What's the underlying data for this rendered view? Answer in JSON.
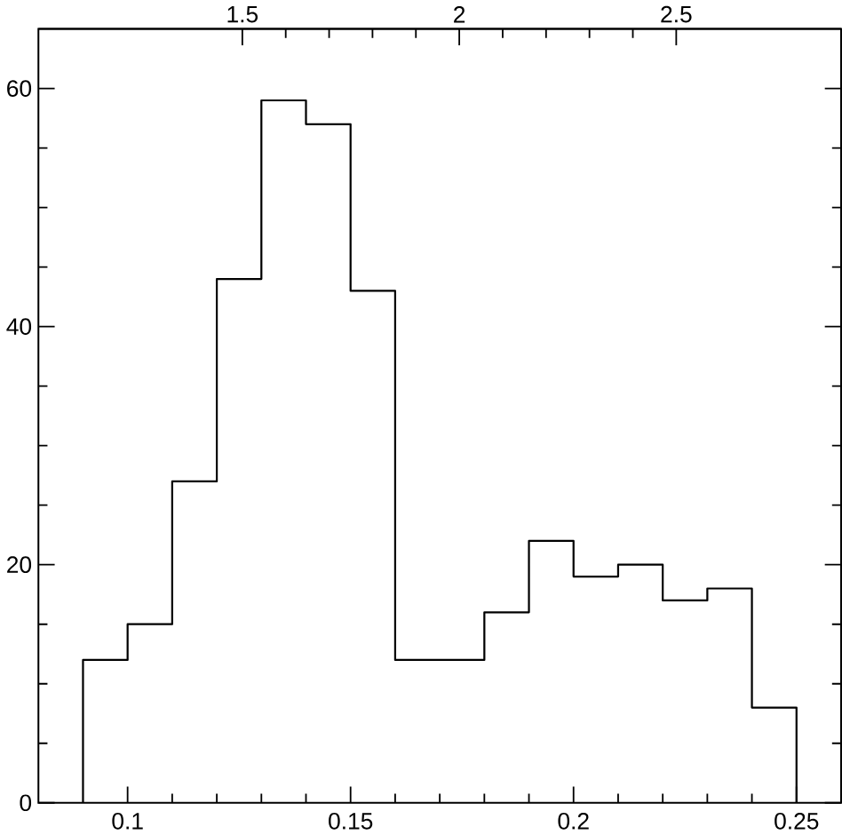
{
  "chart_data": {
    "type": "histogram",
    "bins": [
      0.09,
      0.1,
      0.11,
      0.12,
      0.13,
      0.14,
      0.15,
      0.16,
      0.17,
      0.18,
      0.19,
      0.2,
      0.21,
      0.22,
      0.23,
      0.24,
      0.25
    ],
    "values": [
      12,
      15,
      27,
      44,
      59,
      57,
      43,
      12,
      12,
      16,
      22,
      19,
      20,
      17,
      18,
      8
    ],
    "color": "#000000",
    "xlim": [
      0.08,
      0.26
    ],
    "xticks": [
      0.1,
      0.15,
      0.2,
      0.25
    ],
    "ylim": [
      0,
      65
    ],
    "yticks": [
      0,
      20,
      40,
      60
    ],
    "x2lim": [
      1.03,
      2.88
    ],
    "x2ticks": [
      1.5,
      2,
      2.5
    ],
    "grid": false
  }
}
